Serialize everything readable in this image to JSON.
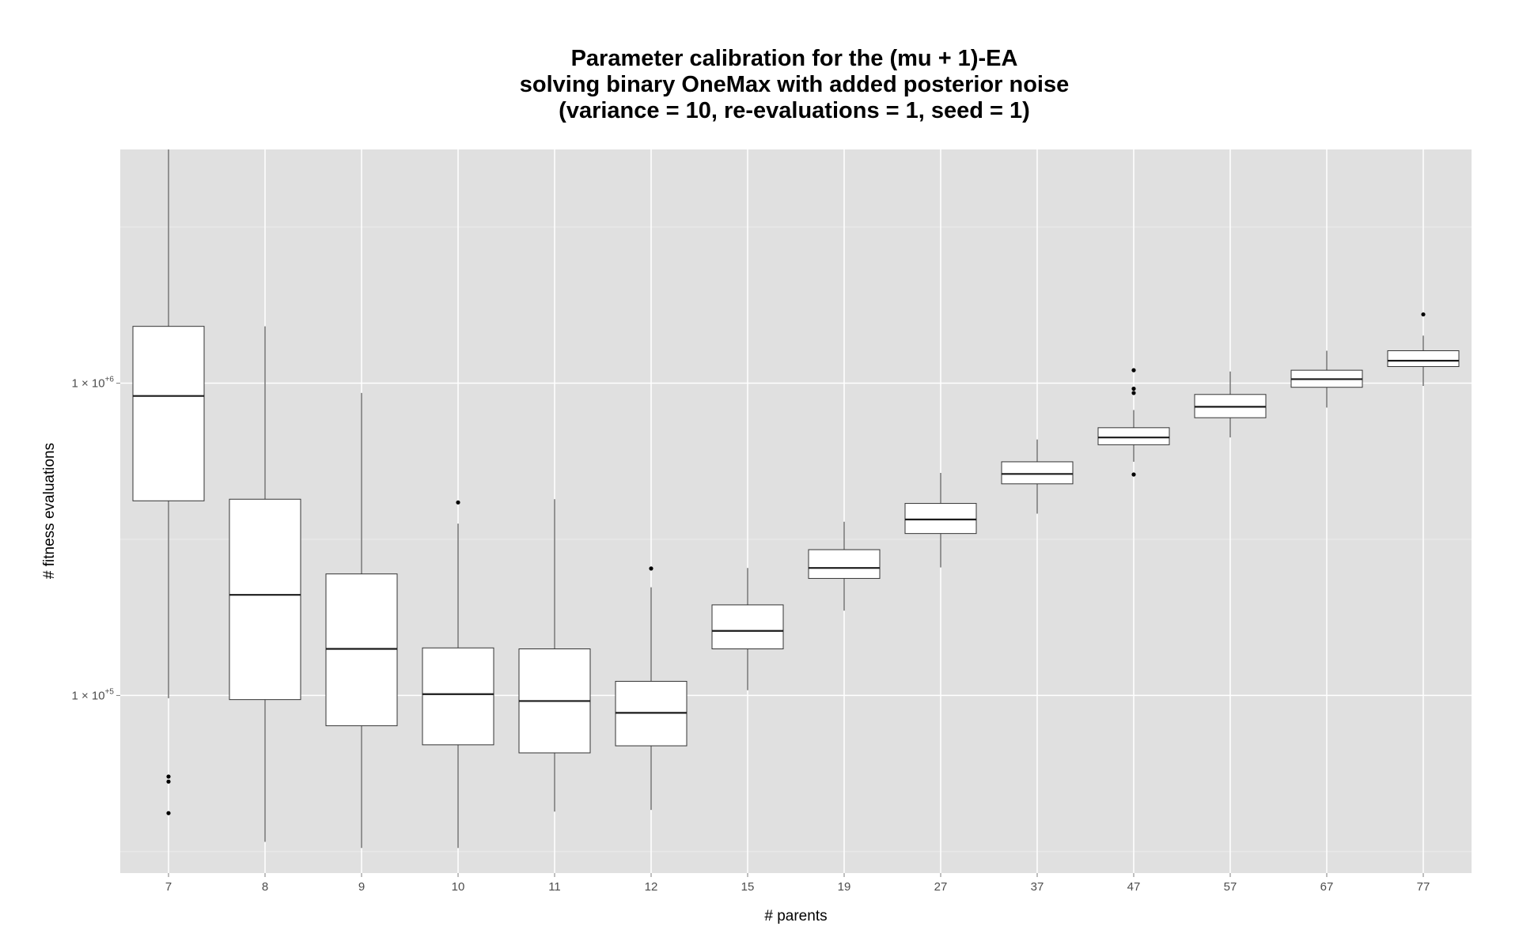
{
  "chart_data": {
    "type": "box",
    "title": [
      "Parameter calibration for the (mu + 1)-EA",
      "solving binary OneMax with added posterior noise",
      "(variance = 10, re-evaluations = 1, seed = 1)"
    ],
    "xlabel": "# parents",
    "ylabel": "# fitness evaluations",
    "y_scale": "log10",
    "ylim": [
      27000,
      5600000
    ],
    "y_ticks": [
      {
        "value": 100000,
        "mantissa": "1",
        "times": "×",
        "base": "10",
        "exponent": "+5"
      },
      {
        "value": 1000000,
        "mantissa": "1",
        "times": "×",
        "base": "10",
        "exponent": "+6"
      }
    ],
    "grid": true,
    "legend": "none",
    "background_color": "#e0e0e0",
    "grid_color": "#ffffff",
    "box_fill": "#ffffff",
    "box_stroke": "#333333",
    "categories": [
      "7",
      "8",
      "9",
      "10",
      "11",
      "12",
      "15",
      "19",
      "27",
      "37",
      "47",
      "57",
      "67",
      "77"
    ],
    "boxes": [
      {
        "category": "7",
        "whisker_low": 98000,
        "q1": 420000,
        "median": 910000,
        "q3": 1520000,
        "whisker_high": 6600000,
        "outliers": [
          53000,
          55000,
          42000
        ]
      },
      {
        "category": "8",
        "whisker_low": 34000,
        "q1": 97000,
        "median": 210000,
        "q3": 425000,
        "whisker_high": 1520000,
        "outliers": []
      },
      {
        "category": "9",
        "whisker_low": 32500,
        "q1": 80000,
        "median": 141000,
        "q3": 245000,
        "whisker_high": 930000,
        "outliers": []
      },
      {
        "category": "10",
        "whisker_low": 32500,
        "q1": 69500,
        "median": 101000,
        "q3": 142000,
        "whisker_high": 355000,
        "outliers": [
          415000
        ]
      },
      {
        "category": "11",
        "whisker_low": 42500,
        "q1": 65500,
        "median": 96000,
        "q3": 141000,
        "whisker_high": 425000,
        "outliers": []
      },
      {
        "category": "12",
        "whisker_low": 43000,
        "q1": 69000,
        "median": 88000,
        "q3": 111000,
        "whisker_high": 222000,
        "outliers": [
          255000
        ]
      },
      {
        "category": "15",
        "whisker_low": 104000,
        "q1": 141000,
        "median": 161000,
        "q3": 195000,
        "whisker_high": 256000,
        "outliers": []
      },
      {
        "category": "19",
        "whisker_low": 187000,
        "q1": 237000,
        "median": 256000,
        "q3": 293000,
        "whisker_high": 360000,
        "outliers": []
      },
      {
        "category": "27",
        "whisker_low": 257000,
        "q1": 330000,
        "median": 366000,
        "q3": 412000,
        "whisker_high": 516000,
        "outliers": []
      },
      {
        "category": "37",
        "whisker_low": 382000,
        "q1": 476000,
        "median": 512000,
        "q3": 560000,
        "whisker_high": 660000,
        "outliers": []
      },
      {
        "category": "47",
        "whisker_low": 560000,
        "q1": 635000,
        "median": 670000,
        "q3": 720000,
        "whisker_high": 820000,
        "outliers": [
          1100000,
          960000,
          930000,
          510000
        ]
      },
      {
        "category": "57",
        "whisker_low": 670000,
        "q1": 775000,
        "median": 840000,
        "q3": 920000,
        "whisker_high": 1090000,
        "outliers": []
      },
      {
        "category": "67",
        "whisker_low": 835000,
        "q1": 970000,
        "median": 1030000,
        "q3": 1100000,
        "whisker_high": 1270000,
        "outliers": []
      },
      {
        "category": "77",
        "whisker_low": 980000,
        "q1": 1130000,
        "median": 1180000,
        "q3": 1270000,
        "whisker_high": 1420000,
        "outliers": [
          1660000
        ]
      }
    ]
  }
}
